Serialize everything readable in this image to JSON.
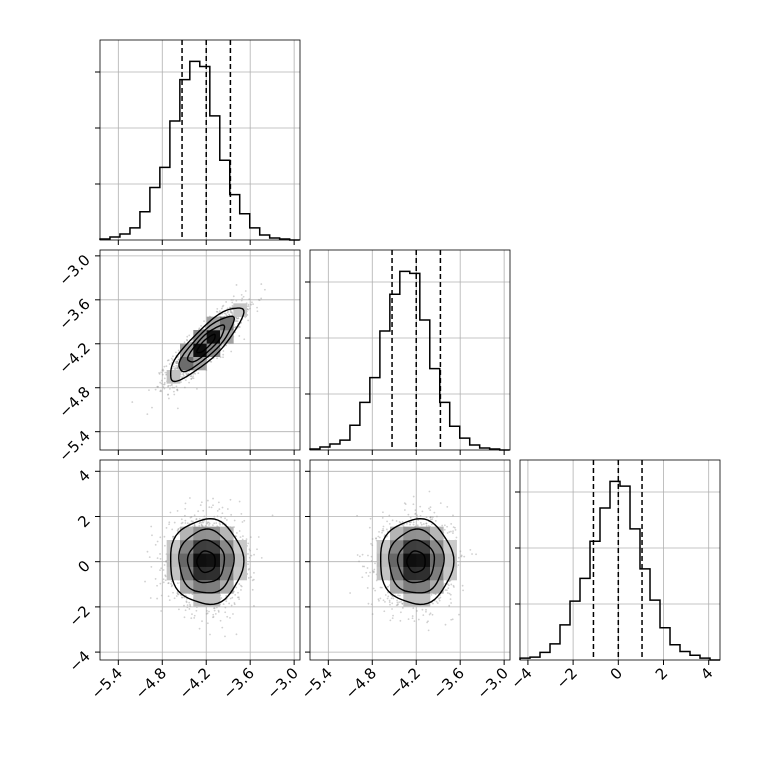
{
  "chart_data": {
    "type": "corner",
    "hist_color": "#000000",
    "grid_color": "#b0b0b0",
    "grid": true,
    "params": [
      {
        "name": "",
        "range": [
          -5.65,
          -2.92
        ],
        "ticks": [
          -5.4,
          -4.8,
          -4.2,
          -3.6,
          -3.0
        ],
        "tick_labels": [
          "−5.4",
          "−4.8",
          "−4.2",
          "−3.6",
          "−3.0"
        ],
        "quantiles": [
          -4.53,
          -4.2,
          -3.87
        ],
        "hist_edges": [
          -5.65,
          -5.514,
          -5.378,
          -5.241,
          -5.105,
          -4.969,
          -4.833,
          -4.696,
          -4.56,
          -4.424,
          -4.288,
          -4.151,
          -4.015,
          -3.879,
          -3.743,
          -3.606,
          -3.47,
          -3.334,
          -3.198,
          -3.061,
          -2.925
        ],
        "hist_counts": [
          1,
          3,
          6,
          12,
          28,
          52,
          72,
          118,
          159,
          177,
          172,
          123,
          79,
          45,
          26,
          12,
          5,
          2,
          1,
          0
        ]
      },
      {
        "name": "",
        "range": [
          -5.65,
          -2.92
        ],
        "ticks": [
          -5.4,
          -4.8,
          -4.2,
          -3.6,
          -3.0
        ],
        "tick_labels": [
          "−5.4",
          "−4.8",
          "−4.2",
          "−3.6",
          "−3.0"
        ],
        "quantiles": [
          -4.53,
          -4.2,
          -3.87
        ],
        "hist_edges": [
          -5.65,
          -5.514,
          -5.378,
          -5.241,
          -5.105,
          -4.969,
          -4.833,
          -4.696,
          -4.56,
          -4.424,
          -4.288,
          -4.151,
          -4.015,
          -3.879,
          -3.743,
          -3.606,
          -3.47,
          -3.334,
          -3.198,
          -3.061,
          -2.925
        ],
        "hist_counts": [
          1,
          3,
          6,
          10,
          25,
          48,
          73,
          120,
          157,
          180,
          178,
          131,
          82,
          48,
          24,
          12,
          5,
          2,
          1,
          0
        ]
      },
      {
        "name": "",
        "range": [
          -4.35,
          4.5
        ],
        "ticks": [
          -4,
          -2,
          0,
          2,
          4
        ],
        "tick_labels": [
          "−4",
          "−2",
          "0",
          "2",
          "4"
        ],
        "quantiles": [
          -1.1,
          0.0,
          1.05
        ],
        "hist_edges": [
          -4.35,
          -3.907,
          -3.465,
          -3.022,
          -2.58,
          -2.137,
          -1.695,
          -1.252,
          -0.81,
          -0.367,
          0.075,
          0.518,
          0.96,
          1.403,
          1.845,
          2.288,
          2.73,
          3.173,
          3.615,
          4.058,
          4.5
        ],
        "hist_counts": [
          2,
          3,
          8,
          17,
          37,
          62,
          86,
          125,
          160,
          188,
          183,
          138,
          96,
          63,
          34,
          16,
          9,
          5,
          2,
          0
        ]
      }
    ],
    "pairs": [
      {
        "row": 1,
        "col": 0,
        "correlation": 0.85,
        "levels": [
          0.39,
          0.86,
          1.0
        ],
        "sigma": [
          0.25,
          0.25
        ]
      },
      {
        "row": 2,
        "col": 0,
        "correlation": 0.0,
        "levels": [
          0.39,
          0.86,
          1.0
        ],
        "sigma": [
          0.25,
          0.94
        ]
      },
      {
        "row": 2,
        "col": 1,
        "correlation": 0.0,
        "levels": [
          0.39,
          0.86,
          1.0
        ],
        "sigma": [
          0.25,
          0.94
        ]
      }
    ]
  }
}
